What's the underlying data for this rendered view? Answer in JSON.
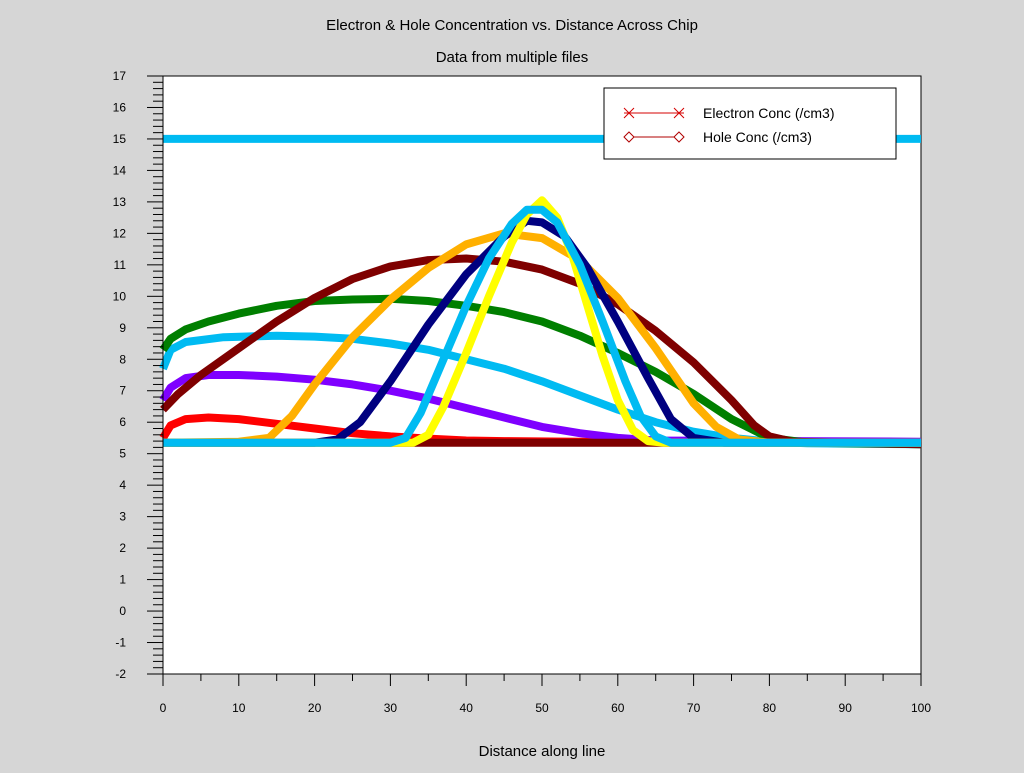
{
  "chart_data": {
    "type": "line",
    "title": "Electron & Hole Concentration vs. Distance Across Chip",
    "subtitle": "Data from multiple files",
    "xlabel": "Distance along line",
    "ylabel": "",
    "xlim": [
      0,
      100
    ],
    "ylim": [
      -2,
      17
    ],
    "x_ticks": [
      0,
      10,
      20,
      30,
      40,
      50,
      60,
      70,
      80,
      90,
      100
    ],
    "y_ticks": [
      -2,
      -1,
      0,
      1,
      2,
      3,
      4,
      5,
      6,
      7,
      8,
      9,
      10,
      11,
      12,
      13,
      14,
      15,
      16,
      17
    ],
    "grid": false,
    "legend": {
      "position": "top-right",
      "entries": [
        {
          "label": "Electron Conc (/cm3)",
          "color": "#d40000",
          "marker": "x"
        },
        {
          "label": "Hole Conc (/cm3)",
          "color": "#b00000",
          "marker": "diamond"
        }
      ]
    },
    "series": [
      {
        "color": "#00bbf2",
        "points": [
          [
            0,
            15
          ],
          [
            100,
            15
          ]
        ]
      },
      {
        "color": "#ff0000",
        "points": [
          [
            0,
            5.5
          ],
          [
            1,
            5.9
          ],
          [
            3,
            6.1
          ],
          [
            6,
            6.15
          ],
          [
            10,
            6.1
          ],
          [
            15,
            5.95
          ],
          [
            20,
            5.8
          ],
          [
            25,
            5.65
          ],
          [
            30,
            5.55
          ],
          [
            35,
            5.48
          ],
          [
            40,
            5.42
          ],
          [
            45,
            5.4
          ],
          [
            55,
            5.38
          ],
          [
            100,
            5.35
          ]
        ]
      },
      {
        "color": "#7f00ff",
        "points": [
          [
            0,
            6.7
          ],
          [
            1,
            7.1
          ],
          [
            3,
            7.4
          ],
          [
            6,
            7.5
          ],
          [
            10,
            7.5
          ],
          [
            15,
            7.45
          ],
          [
            20,
            7.35
          ],
          [
            25,
            7.2
          ],
          [
            30,
            7.0
          ],
          [
            35,
            6.75
          ],
          [
            40,
            6.45
          ],
          [
            45,
            6.15
          ],
          [
            50,
            5.85
          ],
          [
            55,
            5.65
          ],
          [
            60,
            5.5
          ],
          [
            65,
            5.42
          ],
          [
            100,
            5.38
          ]
        ]
      },
      {
        "color": "#00bbf2",
        "points": [
          [
            0,
            7.7
          ],
          [
            1,
            8.3
          ],
          [
            3,
            8.55
          ],
          [
            8,
            8.7
          ],
          [
            15,
            8.75
          ],
          [
            20,
            8.72
          ],
          [
            25,
            8.65
          ],
          [
            30,
            8.5
          ],
          [
            35,
            8.3
          ],
          [
            40,
            8.0
          ],
          [
            45,
            7.7
          ],
          [
            50,
            7.3
          ],
          [
            55,
            6.85
          ],
          [
            60,
            6.4
          ],
          [
            65,
            6.0
          ],
          [
            70,
            5.7
          ],
          [
            75,
            5.5
          ],
          [
            80,
            5.38
          ],
          [
            85,
            5.33
          ],
          [
            100,
            5.3
          ]
        ]
      },
      {
        "color": "#007f00",
        "points": [
          [
            0,
            8.3
          ],
          [
            1,
            8.65
          ],
          [
            3,
            8.95
          ],
          [
            6,
            9.2
          ],
          [
            10,
            9.45
          ],
          [
            15,
            9.7
          ],
          [
            20,
            9.85
          ],
          [
            25,
            9.9
          ],
          [
            30,
            9.92
          ],
          [
            35,
            9.85
          ],
          [
            40,
            9.7
          ],
          [
            45,
            9.5
          ],
          [
            50,
            9.2
          ],
          [
            55,
            8.75
          ],
          [
            60,
            8.2
          ],
          [
            65,
            7.6
          ],
          [
            70,
            6.9
          ],
          [
            75,
            6.1
          ],
          [
            80,
            5.5
          ],
          [
            85,
            5.35
          ],
          [
            100,
            5.3
          ]
        ]
      },
      {
        "color": "#7f0000",
        "points": [
          [
            0,
            6.4
          ],
          [
            2,
            6.9
          ],
          [
            5,
            7.5
          ],
          [
            10,
            8.35
          ],
          [
            15,
            9.2
          ],
          [
            20,
            9.95
          ],
          [
            25,
            10.55
          ],
          [
            30,
            10.95
          ],
          [
            35,
            11.15
          ],
          [
            40,
            11.2
          ],
          [
            45,
            11.1
          ],
          [
            50,
            10.85
          ],
          [
            55,
            10.4
          ],
          [
            60,
            9.75
          ],
          [
            65,
            8.9
          ],
          [
            70,
            7.9
          ],
          [
            75,
            6.7
          ],
          [
            78,
            5.9
          ],
          [
            80,
            5.55
          ],
          [
            83,
            5.38
          ],
          [
            100,
            5.3
          ]
        ]
      },
      {
        "color": "#7f0000",
        "points": [
          [
            0,
            5.35
          ],
          [
            100,
            5.35
          ]
        ]
      },
      {
        "color": "#ffb000",
        "points": [
          [
            0,
            5.35
          ],
          [
            10,
            5.38
          ],
          [
            14,
            5.5
          ],
          [
            17,
            6.2
          ],
          [
            20,
            7.2
          ],
          [
            25,
            8.7
          ],
          [
            30,
            9.9
          ],
          [
            35,
            10.9
          ],
          [
            40,
            11.65
          ],
          [
            45,
            12.0
          ],
          [
            50,
            11.85
          ],
          [
            55,
            11.15
          ],
          [
            60,
            9.95
          ],
          [
            65,
            8.35
          ],
          [
            70,
            6.6
          ],
          [
            73,
            5.85
          ],
          [
            76,
            5.45
          ],
          [
            80,
            5.35
          ],
          [
            100,
            5.35
          ]
        ]
      },
      {
        "color": "#000080",
        "points": [
          [
            0,
            5.35
          ],
          [
            20,
            5.35
          ],
          [
            23,
            5.45
          ],
          [
            26,
            6.0
          ],
          [
            30,
            7.3
          ],
          [
            35,
            9.1
          ],
          [
            40,
            10.7
          ],
          [
            45,
            11.9
          ],
          [
            48,
            12.4
          ],
          [
            50,
            12.35
          ],
          [
            53,
            11.9
          ],
          [
            56,
            10.9
          ],
          [
            60,
            9.2
          ],
          [
            64,
            7.4
          ],
          [
            67,
            6.1
          ],
          [
            70,
            5.5
          ],
          [
            74,
            5.35
          ],
          [
            100,
            5.35
          ]
        ]
      },
      {
        "color": "#ffff00",
        "points": [
          [
            0,
            5.35
          ],
          [
            33,
            5.35
          ],
          [
            35,
            5.6
          ],
          [
            37,
            6.5
          ],
          [
            40,
            8.2
          ],
          [
            43,
            10.0
          ],
          [
            46,
            11.7
          ],
          [
            48,
            12.6
          ],
          [
            50,
            13.05
          ],
          [
            52,
            12.5
          ],
          [
            54,
            11.3
          ],
          [
            56,
            9.7
          ],
          [
            58,
            8.1
          ],
          [
            60,
            6.7
          ],
          [
            62,
            5.75
          ],
          [
            64,
            5.4
          ],
          [
            66,
            5.35
          ],
          [
            100,
            5.35
          ]
        ]
      },
      {
        "color": "#00bbf2",
        "points": [
          [
            0,
            5.35
          ],
          [
            30,
            5.35
          ],
          [
            32,
            5.5
          ],
          [
            34,
            6.3
          ],
          [
            37,
            8.0
          ],
          [
            40,
            9.7
          ],
          [
            43,
            11.2
          ],
          [
            46,
            12.3
          ],
          [
            48,
            12.75
          ],
          [
            50,
            12.75
          ],
          [
            52,
            12.35
          ],
          [
            55,
            11.0
          ],
          [
            58,
            9.2
          ],
          [
            61,
            7.3
          ],
          [
            63,
            6.2
          ],
          [
            65,
            5.55
          ],
          [
            67,
            5.35
          ],
          [
            100,
            5.35
          ]
        ]
      }
    ]
  }
}
